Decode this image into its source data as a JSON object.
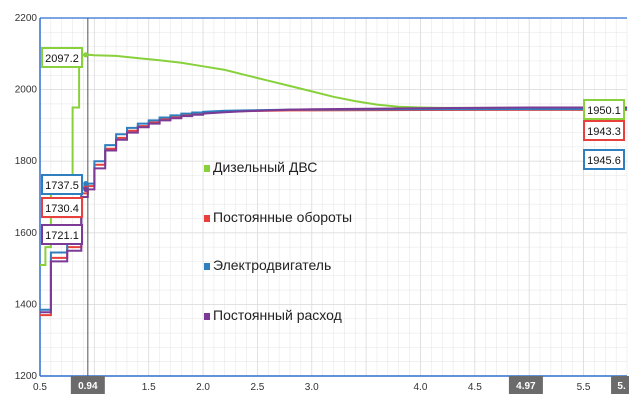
{
  "chart_data": {
    "type": "line",
    "title": "",
    "xlabel": "",
    "ylabel": "",
    "xlim": [
      0.5,
      5.9
    ],
    "ylim": [
      1200,
      2200
    ],
    "grid": true,
    "legend_position": "center",
    "x_ticks": [
      "0.5",
      "1.5",
      "2.0",
      "2.5",
      "3.0",
      "4.0",
      "4.5",
      "5.0",
      "5.5"
    ],
    "y_ticks": [
      "1200",
      "1400",
      "1600",
      "1800",
      "2000",
      "2200"
    ],
    "cursors": [
      {
        "x": 0.94,
        "label": "0.94",
        "vertical_line": true
      },
      {
        "x": 4.97,
        "label": "4.97",
        "vertical_line": false
      },
      {
        "x": 5.85,
        "label": "5.",
        "vertical_line": false
      }
    ],
    "series": [
      {
        "name": "Дизельный ДВС",
        "color": "#88d03c",
        "x": [
          0.5,
          0.55,
          0.55,
          0.6,
          0.6,
          0.8,
          0.8,
          0.86,
          0.86,
          0.94,
          1.0,
          1.2,
          1.4,
          1.6,
          1.8,
          2.0,
          2.2,
          2.4,
          2.6,
          2.8,
          3.0,
          3.2,
          3.4,
          3.6,
          3.8,
          4.0,
          4.2,
          4.5,
          5.0,
          5.5,
          5.9
        ],
        "y": [
          1510,
          1510,
          1560,
          1560,
          1720,
          1720,
          1950,
          1950,
          2097.2,
          2097.2,
          2096,
          2094,
          2088,
          2082,
          2075,
          2065,
          2055,
          2040,
          2025,
          2010,
          1995,
          1980,
          1968,
          1958,
          1952,
          1950,
          1949,
          1949,
          1949,
          1950.1,
          1950.1
        ]
      },
      {
        "name": "Постоянные обороты",
        "color": "#e8403c",
        "x": [
          0.5,
          0.6,
          0.6,
          0.75,
          0.75,
          0.88,
          0.88,
          0.94,
          0.94,
          1.0,
          1.0,
          1.1,
          1.1,
          1.2,
          1.2,
          1.3,
          1.3,
          1.4,
          1.4,
          1.5,
          1.5,
          1.6,
          1.6,
          1.7,
          1.7,
          1.8,
          1.8,
          1.9,
          1.9,
          2.0,
          2.0,
          2.2,
          2.4,
          2.6,
          2.8,
          3.0,
          4.0,
          5.0,
          5.9
        ],
        "y": [
          1370,
          1370,
          1530,
          1530,
          1560,
          1560,
          1710,
          1710,
          1730.4,
          1730.4,
          1790,
          1790,
          1835,
          1835,
          1865,
          1865,
          1885,
          1885,
          1898,
          1898,
          1908,
          1908,
          1917,
          1917,
          1923,
          1923,
          1928,
          1928,
          1932,
          1932,
          1935,
          1938,
          1940,
          1941,
          1942,
          1942,
          1943,
          1943.3,
          1943.3
        ]
      },
      {
        "name": "Электродвигатель",
        "color": "#2f7fbf",
        "x": [
          0.5,
          0.6,
          0.6,
          0.75,
          0.75,
          0.88,
          0.88,
          0.94,
          0.94,
          1.0,
          1.0,
          1.1,
          1.1,
          1.2,
          1.2,
          1.3,
          1.3,
          1.4,
          1.4,
          1.5,
          1.5,
          1.6,
          1.6,
          1.7,
          1.7,
          1.8,
          1.8,
          1.9,
          1.9,
          2.0,
          2.0,
          2.2,
          2.4,
          2.6,
          2.8,
          3.0,
          4.0,
          5.0,
          5.9
        ],
        "y": [
          1385,
          1385,
          1545,
          1545,
          1575,
          1575,
          1725,
          1725,
          1737.5,
          1737.5,
          1800,
          1800,
          1845,
          1845,
          1875,
          1875,
          1893,
          1893,
          1905,
          1905,
          1914,
          1914,
          1922,
          1922,
          1928,
          1928,
          1933,
          1933,
          1936,
          1936,
          1938,
          1941,
          1942,
          1943,
          1944,
          1944,
          1945,
          1945.6,
          1945.6
        ]
      },
      {
        "name": "Постоянный расход",
        "color": "#7b3a96",
        "x": [
          0.5,
          0.6,
          0.6,
          0.75,
          0.75,
          0.88,
          0.88,
          0.94,
          0.94,
          1.0,
          1.0,
          1.1,
          1.1,
          1.2,
          1.2,
          1.3,
          1.3,
          1.4,
          1.4,
          1.5,
          1.5,
          1.6,
          1.6,
          1.7,
          1.7,
          1.8,
          1.8,
          1.9,
          1.9,
          2.0,
          2.0,
          2.2,
          2.4,
          2.6,
          2.8,
          3.0,
          4.0,
          5.0,
          5.9
        ],
        "y": [
          1378,
          1378,
          1520,
          1520,
          1550,
          1550,
          1700,
          1700,
          1721.1,
          1721.1,
          1780,
          1780,
          1830,
          1830,
          1860,
          1860,
          1880,
          1880,
          1895,
          1895,
          1905,
          1905,
          1914,
          1914,
          1920,
          1920,
          1926,
          1926,
          1930,
          1930,
          1933,
          1937,
          1940,
          1942,
          1944,
          1945,
          1948,
          1950,
          1950
        ]
      }
    ],
    "value_labels": [
      {
        "series": "Дизельный ДВС",
        "text": "2097.2",
        "color": "#88d03c",
        "side": "left"
      },
      {
        "series": "Электродвигатель",
        "text": "1737.5",
        "color": "#2f7fbf",
        "side": "left"
      },
      {
        "series": "Постоянные обороты",
        "text": "1730.4",
        "color": "#e8403c",
        "side": "left"
      },
      {
        "series": "Постоянный расход",
        "text": "1721.1",
        "color": "#7b3a96",
        "side": "left"
      },
      {
        "series": "Дизельный ДВС",
        "text": "1950.1",
        "color": "#88d03c",
        "side": "right"
      },
      {
        "series": "Постоянные обороты",
        "text": "1943.3",
        "color": "#e8403c",
        "side": "right"
      },
      {
        "series": "Электродвигатель",
        "text": "1945.6",
        "color": "#2f7fbf",
        "side": "right"
      }
    ],
    "colors": {
      "axis": "#2f6fd0",
      "grid": "#dddddd",
      "cursor_line": "#555555",
      "cursor_badge": "#6b6b6b"
    }
  }
}
